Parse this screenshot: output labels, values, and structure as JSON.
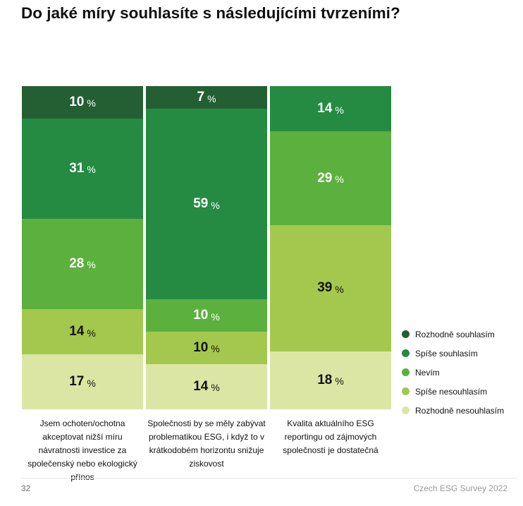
{
  "chart_data": {
    "type": "bar",
    "stacked": true,
    "title": "Do jaké míry souhlasíte s následujícími tvrzeními?",
    "unit": "%",
    "categories": [
      "Jsem ochoten/ochotna akceptovat nižší míru návratnosti investice za společenský nebo ekologický přínos",
      "Společnosti by se měly zabývat problematikou ESG, i když to v krátkodobém horizontu snižuje ziskovost",
      "Kvalita aktuálního ESG reportingu od zájmových společností je dostatečná"
    ],
    "series": [
      {
        "name": "Rozhodně souhlasím",
        "color": "#235f32",
        "values": [
          10,
          7,
          0
        ]
      },
      {
        "name": "Spíše souhlasím",
        "color": "#258b43",
        "values": [
          31,
          59,
          14
        ]
      },
      {
        "name": "Nevím",
        "color": "#5cb03d",
        "values": [
          28,
          10,
          29
        ]
      },
      {
        "name": "Spíše nesouhlasím",
        "color": "#a4c74d",
        "values": [
          14,
          10,
          39
        ]
      },
      {
        "name": "Rozhodně nesouhlasím",
        "color": "#dbe6a5",
        "values": [
          17,
          14,
          18
        ]
      }
    ],
    "legend_position": "right"
  },
  "footer": {
    "page": "32",
    "source": "Czech ESG Survey 2022"
  }
}
